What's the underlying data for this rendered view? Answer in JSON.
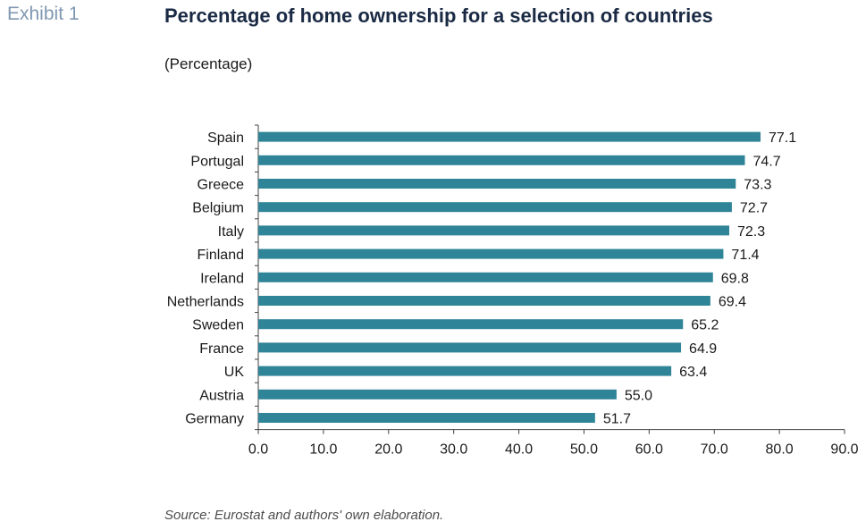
{
  "header": {
    "exhibit": "Exhibit 1",
    "title": "Percentage of home ownership for a selection of countries",
    "subtitle": "(Percentage)"
  },
  "footer": {
    "source": "Source: Eurostat and authors' own elaboration."
  },
  "colors": {
    "bar": "#2f8497",
    "axis": "#404040"
  },
  "chart_data": {
    "type": "bar",
    "orientation": "horizontal",
    "categories": [
      "Spain",
      "Portugal",
      "Greece",
      "Belgium",
      "Italy",
      "Finland",
      "Ireland",
      "Netherlands",
      "Sweden",
      "France",
      "UK",
      "Austria",
      "Germany"
    ],
    "values": [
      77.1,
      74.7,
      73.3,
      72.7,
      72.3,
      71.4,
      69.8,
      69.4,
      65.2,
      64.9,
      63.4,
      55.0,
      51.7
    ],
    "value_labels": [
      "77.1",
      "74.7",
      "73.3",
      "72.7",
      "72.3",
      "71.4",
      "69.8",
      "69.4",
      "65.2",
      "64.9",
      "63.4",
      "55.0",
      "51.7"
    ],
    "xlim": [
      0,
      90
    ],
    "x_ticks": [
      "0.0",
      "10.0",
      "20.0",
      "30.0",
      "40.0",
      "50.0",
      "60.0",
      "70.0",
      "80.0",
      "90.0"
    ],
    "title": "Percentage of home ownership for a selection of countries",
    "xlabel": "",
    "ylabel": "",
    "grid": false,
    "legend": "none"
  }
}
